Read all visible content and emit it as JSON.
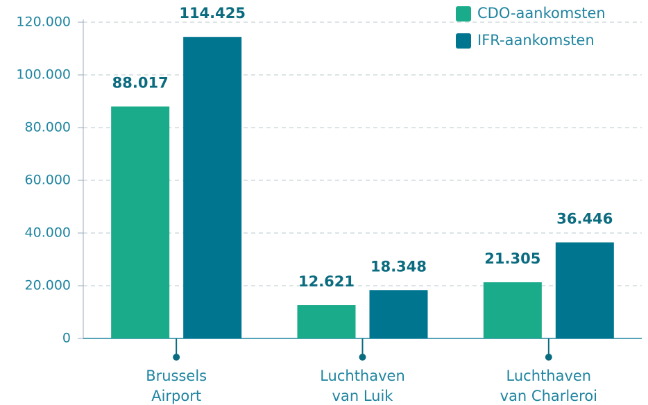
{
  "chart_data": {
    "type": "bar",
    "categories": [
      [
        "Brussels",
        "Airport"
      ],
      [
        "Luchthaven",
        "van Luik"
      ],
      [
        "Luchthaven",
        "van Charleroi"
      ]
    ],
    "series": [
      {
        "name": "CDO-aankomsten",
        "color": "#1aab8a",
        "values": [
          88017,
          12621,
          21305
        ],
        "value_labels": [
          "88.017",
          "12.621",
          "21.305"
        ]
      },
      {
        "name": "IFR-aankomsten",
        "color": "#00758f",
        "values": [
          114425,
          18348,
          36446
        ],
        "value_labels": [
          "114.425",
          "18.348",
          "36.446"
        ]
      }
    ],
    "ylim": [
      0,
      120000
    ],
    "yticks": [
      0,
      {
        "value": 20000,
        "label": "20.000"
      },
      {
        "value": 40000,
        "label": "40.000"
      },
      {
        "value": 60000,
        "label": "60.000"
      },
      {
        "value": 80000,
        "label": "80.000"
      },
      {
        "value": 100000,
        "label": "100.000"
      },
      {
        "value": 120000,
        "label": "120.000"
      }
    ],
    "grid": true,
    "legend": "top-right"
  }
}
